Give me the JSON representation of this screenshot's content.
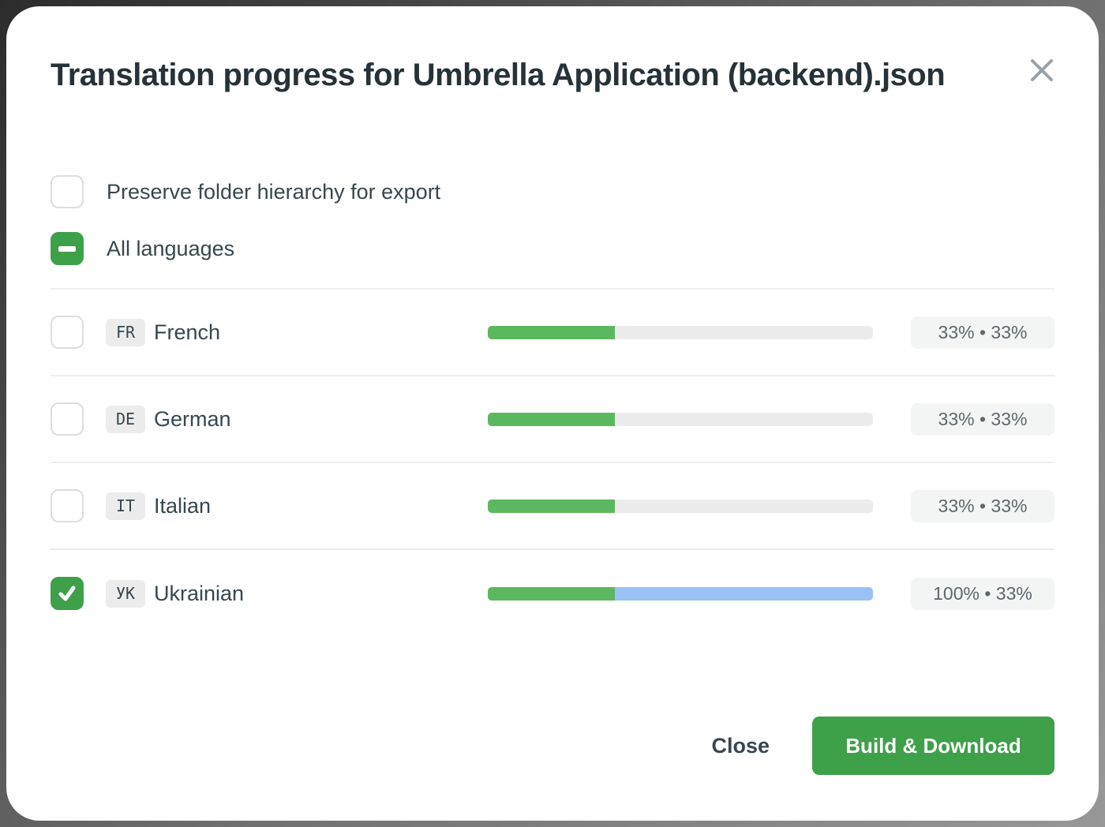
{
  "dialog": {
    "title": "Translation progress for Umbrella Application (backend).json"
  },
  "options": {
    "preserve_hierarchy": {
      "label": "Preserve folder hierarchy for export",
      "state": "unchecked"
    },
    "all_languages": {
      "label": "All languages",
      "state": "indeterminate"
    }
  },
  "languages": [
    {
      "code": "FR",
      "name": "French",
      "state": "unchecked",
      "translated_percent": 33,
      "approved_percent": 33,
      "badge": "33% • 33%"
    },
    {
      "code": "DE",
      "name": "German",
      "state": "unchecked",
      "translated_percent": 33,
      "approved_percent": 33,
      "badge": "33% • 33%"
    },
    {
      "code": "IT",
      "name": "Italian",
      "state": "unchecked",
      "translated_percent": 33,
      "approved_percent": 33,
      "badge": "33% • 33%"
    },
    {
      "code": "УК",
      "name": "Ukrainian",
      "state": "checked",
      "translated_percent": 100,
      "approved_percent": 33,
      "badge": "100% • 33%"
    }
  ],
  "footer": {
    "close_label": "Close",
    "build_label": "Build & Download"
  },
  "colors": {
    "accent_green": "#3fa04a",
    "progress_approved_green": "#5cb85f",
    "progress_translated_blue": "#98c1f6",
    "progress_track": "#ececec",
    "badge_background": "#f3f4f4"
  }
}
